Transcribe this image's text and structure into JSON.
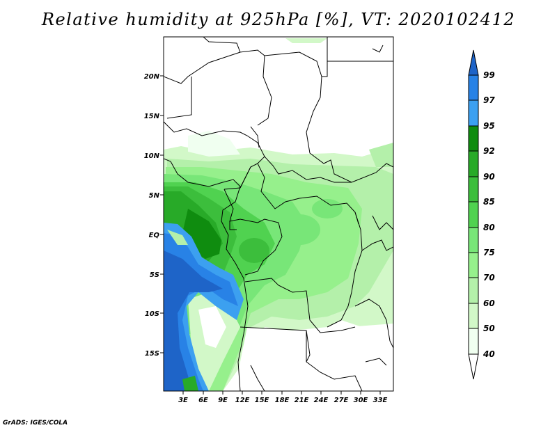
{
  "title": "Relative humidity at 925hPa [%], VT: 2020102412",
  "credit": "GrADS: IGES/COLA",
  "map": {
    "lon_ticks": [
      "3E",
      "6E",
      "9E",
      "12E",
      "15E",
      "18E",
      "21E",
      "24E",
      "27E",
      "30E",
      "33E"
    ],
    "lat_ticks": [
      "20N",
      "15N",
      "10N",
      "5N",
      "EQ",
      "5S",
      "10S",
      "15S"
    ]
  },
  "colorbar": {
    "levels": [
      "99",
      "97",
      "95",
      "92",
      "90",
      "85",
      "80",
      "75",
      "70",
      "60",
      "50",
      "40"
    ],
    "colors": [
      "#1e64c8",
      "#2882e6",
      "#3ca0f0",
      "#0f8c0f",
      "#28aa28",
      "#3cbe3c",
      "#50d250",
      "#78e678",
      "#96f08c",
      "#b4f0aa",
      "#d2f8c8",
      "#f0fff0"
    ]
  }
}
